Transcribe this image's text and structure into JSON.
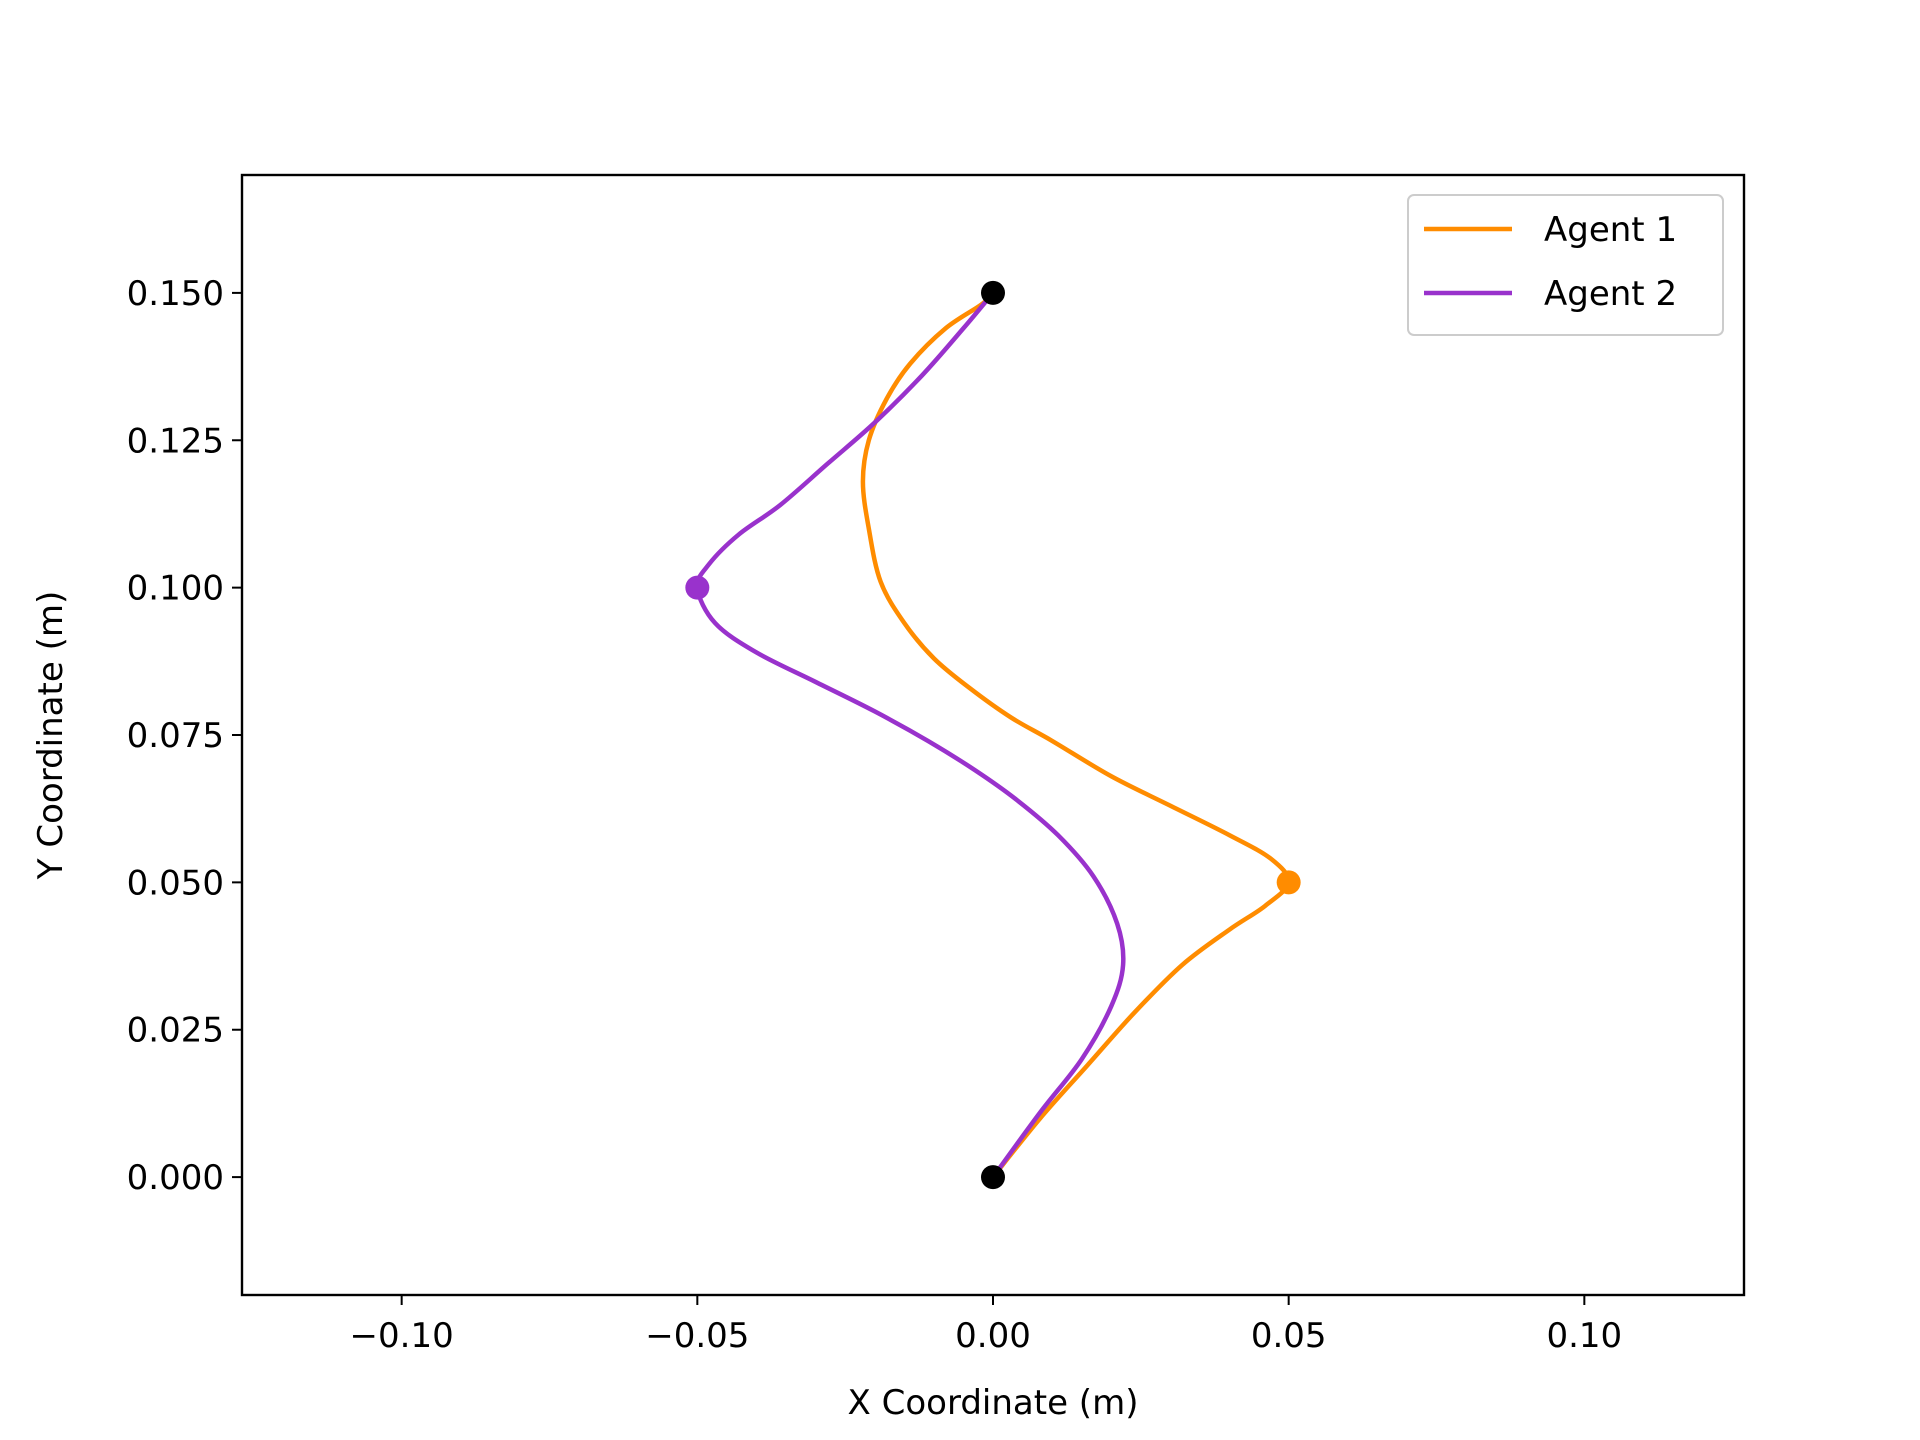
{
  "chart_data": {
    "type": "line",
    "title": "",
    "xlabel": "X Coordinate (m)",
    "ylabel": "Y Coordinate (m)",
    "xlim": [
      -0.127,
      0.127
    ],
    "ylim": [
      -0.02,
      0.17
    ],
    "xticks": [
      -0.1,
      -0.05,
      0.0,
      0.05,
      0.1
    ],
    "xtick_labels": [
      "−0.10",
      "−0.05",
      "0.00",
      "0.05",
      "0.10"
    ],
    "yticks": [
      0.0,
      0.025,
      0.05,
      0.075,
      0.1,
      0.125,
      0.15
    ],
    "ytick_labels": [
      "0.000",
      "0.025",
      "0.050",
      "0.075",
      "0.100",
      "0.125",
      "0.150"
    ],
    "grid": false,
    "legend_position": "top-right",
    "series": [
      {
        "name": "Agent 1",
        "color": "#ff8c00",
        "x": [
          0.0,
          0.008,
          0.016,
          0.024,
          0.032,
          0.04,
          0.046,
          0.05,
          0.047,
          0.04,
          0.03,
          0.02,
          0.01,
          0.003,
          -0.004,
          -0.01,
          -0.015,
          -0.019,
          -0.021,
          -0.022,
          -0.021,
          -0.018,
          -0.014,
          -0.008,
          -0.002,
          0.0
        ],
        "y": [
          0.0,
          0.01,
          0.019,
          0.028,
          0.036,
          0.042,
          0.046,
          0.05,
          0.054,
          0.058,
          0.063,
          0.068,
          0.074,
          0.078,
          0.083,
          0.088,
          0.094,
          0.101,
          0.11,
          0.118,
          0.125,
          0.132,
          0.138,
          0.144,
          0.148,
          0.15
        ]
      },
      {
        "name": "Agent 2",
        "color": "#9932cc",
        "x": [
          0.0,
          0.008,
          0.015,
          0.02,
          0.022,
          0.021,
          0.017,
          0.011,
          0.004,
          -0.003,
          -0.011,
          -0.02,
          -0.03,
          -0.04,
          -0.047,
          -0.05,
          -0.048,
          -0.043,
          -0.036,
          -0.028,
          -0.02,
          -0.012,
          -0.005,
          0.0
        ],
        "y": [
          0.0,
          0.011,
          0.02,
          0.029,
          0.036,
          0.043,
          0.051,
          0.058,
          0.064,
          0.069,
          0.074,
          0.079,
          0.084,
          0.089,
          0.094,
          0.1,
          0.104,
          0.109,
          0.114,
          0.121,
          0.128,
          0.136,
          0.144,
          0.15
        ]
      }
    ],
    "markers": [
      {
        "x": 0.0,
        "y": 0.0,
        "color": "#000000"
      },
      {
        "x": 0.0,
        "y": 0.15,
        "color": "#000000"
      },
      {
        "x": 0.05,
        "y": 0.05,
        "color": "#ff8c00"
      },
      {
        "x": -0.05,
        "y": 0.1,
        "color": "#9932cc"
      }
    ]
  }
}
